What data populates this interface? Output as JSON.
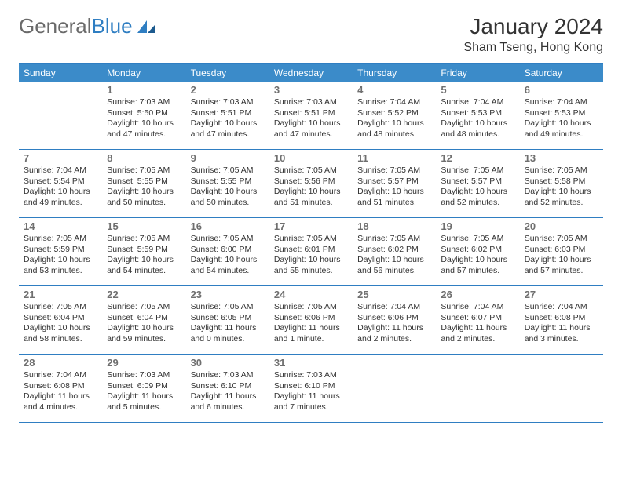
{
  "logo": {
    "text1": "General",
    "text2": "Blue"
  },
  "title": "January 2024",
  "location": "Sham Tseng, Hong Kong",
  "colors": {
    "header_bg": "#3b8bc9",
    "border": "#2f7ec2",
    "daynum": "#6f6f6f",
    "text": "#333333",
    "logo_gray": "#6a6a6a",
    "logo_blue": "#2f7ec2"
  },
  "daynames": [
    "Sunday",
    "Monday",
    "Tuesday",
    "Wednesday",
    "Thursday",
    "Friday",
    "Saturday"
  ],
  "weeks": [
    [
      null,
      {
        "n": "1",
        "sr": "7:03 AM",
        "ss": "5:50 PM",
        "dl": "10 hours and 47 minutes."
      },
      {
        "n": "2",
        "sr": "7:03 AM",
        "ss": "5:51 PM",
        "dl": "10 hours and 47 minutes."
      },
      {
        "n": "3",
        "sr": "7:03 AM",
        "ss": "5:51 PM",
        "dl": "10 hours and 47 minutes."
      },
      {
        "n": "4",
        "sr": "7:04 AM",
        "ss": "5:52 PM",
        "dl": "10 hours and 48 minutes."
      },
      {
        "n": "5",
        "sr": "7:04 AM",
        "ss": "5:53 PM",
        "dl": "10 hours and 48 minutes."
      },
      {
        "n": "6",
        "sr": "7:04 AM",
        "ss": "5:53 PM",
        "dl": "10 hours and 49 minutes."
      }
    ],
    [
      {
        "n": "7",
        "sr": "7:04 AM",
        "ss": "5:54 PM",
        "dl": "10 hours and 49 minutes."
      },
      {
        "n": "8",
        "sr": "7:05 AM",
        "ss": "5:55 PM",
        "dl": "10 hours and 50 minutes."
      },
      {
        "n": "9",
        "sr": "7:05 AM",
        "ss": "5:55 PM",
        "dl": "10 hours and 50 minutes."
      },
      {
        "n": "10",
        "sr": "7:05 AM",
        "ss": "5:56 PM",
        "dl": "10 hours and 51 minutes."
      },
      {
        "n": "11",
        "sr": "7:05 AM",
        "ss": "5:57 PM",
        "dl": "10 hours and 51 minutes."
      },
      {
        "n": "12",
        "sr": "7:05 AM",
        "ss": "5:57 PM",
        "dl": "10 hours and 52 minutes."
      },
      {
        "n": "13",
        "sr": "7:05 AM",
        "ss": "5:58 PM",
        "dl": "10 hours and 52 minutes."
      }
    ],
    [
      {
        "n": "14",
        "sr": "7:05 AM",
        "ss": "5:59 PM",
        "dl": "10 hours and 53 minutes."
      },
      {
        "n": "15",
        "sr": "7:05 AM",
        "ss": "5:59 PM",
        "dl": "10 hours and 54 minutes."
      },
      {
        "n": "16",
        "sr": "7:05 AM",
        "ss": "6:00 PM",
        "dl": "10 hours and 54 minutes."
      },
      {
        "n": "17",
        "sr": "7:05 AM",
        "ss": "6:01 PM",
        "dl": "10 hours and 55 minutes."
      },
      {
        "n": "18",
        "sr": "7:05 AM",
        "ss": "6:02 PM",
        "dl": "10 hours and 56 minutes."
      },
      {
        "n": "19",
        "sr": "7:05 AM",
        "ss": "6:02 PM",
        "dl": "10 hours and 57 minutes."
      },
      {
        "n": "20",
        "sr": "7:05 AM",
        "ss": "6:03 PM",
        "dl": "10 hours and 57 minutes."
      }
    ],
    [
      {
        "n": "21",
        "sr": "7:05 AM",
        "ss": "6:04 PM",
        "dl": "10 hours and 58 minutes."
      },
      {
        "n": "22",
        "sr": "7:05 AM",
        "ss": "6:04 PM",
        "dl": "10 hours and 59 minutes."
      },
      {
        "n": "23",
        "sr": "7:05 AM",
        "ss": "6:05 PM",
        "dl": "11 hours and 0 minutes."
      },
      {
        "n": "24",
        "sr": "7:05 AM",
        "ss": "6:06 PM",
        "dl": "11 hours and 1 minute."
      },
      {
        "n": "25",
        "sr": "7:04 AM",
        "ss": "6:06 PM",
        "dl": "11 hours and 2 minutes."
      },
      {
        "n": "26",
        "sr": "7:04 AM",
        "ss": "6:07 PM",
        "dl": "11 hours and 2 minutes."
      },
      {
        "n": "27",
        "sr": "7:04 AM",
        "ss": "6:08 PM",
        "dl": "11 hours and 3 minutes."
      }
    ],
    [
      {
        "n": "28",
        "sr": "7:04 AM",
        "ss": "6:08 PM",
        "dl": "11 hours and 4 minutes."
      },
      {
        "n": "29",
        "sr": "7:03 AM",
        "ss": "6:09 PM",
        "dl": "11 hours and 5 minutes."
      },
      {
        "n": "30",
        "sr": "7:03 AM",
        "ss": "6:10 PM",
        "dl": "11 hours and 6 minutes."
      },
      {
        "n": "31",
        "sr": "7:03 AM",
        "ss": "6:10 PM",
        "dl": "11 hours and 7 minutes."
      },
      null,
      null,
      null
    ]
  ],
  "labels": {
    "sunrise": "Sunrise:",
    "sunset": "Sunset:",
    "daylight": "Daylight:"
  }
}
